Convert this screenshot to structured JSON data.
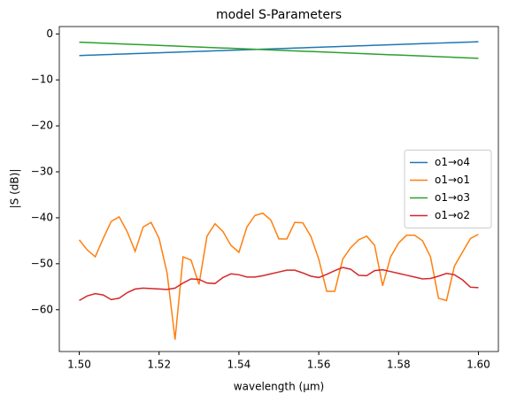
{
  "chart_data": {
    "type": "line",
    "title": "model S-Parameters",
    "x_label": "wavelength (µm)",
    "y_label": "|S (dB)|",
    "x": [
      1.5,
      1.502,
      1.504,
      1.506,
      1.508,
      1.51,
      1.512,
      1.514,
      1.516,
      1.518,
      1.52,
      1.522,
      1.524,
      1.526,
      1.528,
      1.53,
      1.532,
      1.534,
      1.536,
      1.538,
      1.54,
      1.542,
      1.544,
      1.546,
      1.548,
      1.55,
      1.552,
      1.554,
      1.556,
      1.558,
      1.56,
      1.562,
      1.564,
      1.566,
      1.568,
      1.57,
      1.572,
      1.574,
      1.576,
      1.578,
      1.58,
      1.582,
      1.584,
      1.586,
      1.588,
      1.59,
      1.592,
      1.594,
      1.596,
      1.598,
      1.6
    ],
    "series": [
      {
        "name": "o1→o4",
        "color": "#1f77b4",
        "values": [
          -4.7,
          -4.64,
          -4.58,
          -4.52,
          -4.46,
          -4.4,
          -4.34,
          -4.28,
          -4.22,
          -4.16,
          -4.1,
          -4.04,
          -3.98,
          -3.92,
          -3.86,
          -3.8,
          -3.74,
          -3.68,
          -3.62,
          -3.56,
          -3.5,
          -3.44,
          -3.38,
          -3.32,
          -3.26,
          -3.2,
          -3.14,
          -3.08,
          -3.02,
          -2.96,
          -2.9,
          -2.84,
          -2.78,
          -2.72,
          -2.66,
          -2.6,
          -2.54,
          -2.48,
          -2.42,
          -2.36,
          -2.3,
          -2.24,
          -2.18,
          -2.12,
          -2.06,
          -2.0,
          -1.94,
          -1.88,
          -1.82,
          -1.76,
          -1.7
        ]
      },
      {
        "name": "o1→o1",
        "color": "#ff7f0e",
        "values": [
          -44.8,
          -47.0,
          -48.5,
          -44.5,
          -40.8,
          -39.8,
          -43.0,
          -47.3,
          -42.0,
          -41.0,
          -44.5,
          -52.0,
          -66.5,
          -48.5,
          -49.2,
          -54.5,
          -44.0,
          -41.3,
          -43.0,
          -46.0,
          -47.5,
          -42.0,
          -39.5,
          -39.0,
          -40.5,
          -44.6,
          -44.6,
          -41.0,
          -41.1,
          -44.0,
          -49.0,
          -56.0,
          -56.0,
          -49.0,
          -46.5,
          -44.8,
          -44.0,
          -46.0,
          -54.8,
          -48.5,
          -45.5,
          -43.8,
          -43.8,
          -45.0,
          -48.5,
          -57.5,
          -58.0,
          -50.5,
          -47.5,
          -44.5,
          -43.6
        ]
      },
      {
        "name": "o1→o3",
        "color": "#2ca02c",
        "values": [
          -1.8,
          -1.87,
          -1.94,
          -2.01,
          -2.08,
          -2.15,
          -2.22,
          -2.29,
          -2.36,
          -2.43,
          -2.5,
          -2.57,
          -2.64,
          -2.71,
          -2.78,
          -2.85,
          -2.92,
          -2.99,
          -3.06,
          -3.13,
          -3.2,
          -3.27,
          -3.34,
          -3.41,
          -3.48,
          -3.55,
          -3.62,
          -3.69,
          -3.76,
          -3.83,
          -3.9,
          -3.97,
          -4.04,
          -4.11,
          -4.18,
          -4.25,
          -4.32,
          -4.39,
          -4.46,
          -4.53,
          -4.6,
          -4.67,
          -4.74,
          -4.81,
          -4.88,
          -4.95,
          -5.02,
          -5.09,
          -5.16,
          -5.23,
          -5.3
        ]
      },
      {
        "name": "o1→o2",
        "color": "#d62728",
        "values": [
          -58.0,
          -57.0,
          -56.5,
          -56.8,
          -57.8,
          -57.5,
          -56.3,
          -55.5,
          -55.3,
          -55.4,
          -55.5,
          -55.6,
          -55.3,
          -54.2,
          -53.3,
          -53.4,
          -54.2,
          -54.3,
          -53.0,
          -52.2,
          -52.4,
          -52.9,
          -52.9,
          -52.6,
          -52.2,
          -51.8,
          -51.4,
          -51.4,
          -52.0,
          -52.7,
          -53.0,
          -52.3,
          -51.5,
          -50.8,
          -51.2,
          -52.5,
          -52.6,
          -51.5,
          -51.3,
          -51.7,
          -52.1,
          -52.5,
          -52.9,
          -53.3,
          -53.2,
          -52.7,
          -52.1,
          -52.4,
          -53.5,
          -55.1,
          -55.2
        ]
      }
    ],
    "xlim": [
      1.495,
      1.605
    ],
    "ylim": [
      -69.1,
      1.6
    ],
    "xticks": [
      {
        "value": 1.5,
        "label": "1.50"
      },
      1.52,
      1.54,
      1.56,
      1.58,
      {
        "value": 1.6,
        "label": "1.60"
      }
    ],
    "yticks": [
      {
        "value": 0,
        "label": "0"
      },
      {
        "value": -10,
        "label": "−10"
      },
      {
        "value": -20,
        "label": "−20"
      },
      {
        "value": -30,
        "label": "−30"
      },
      {
        "value": -40,
        "label": "−40"
      },
      {
        "value": -50,
        "label": "−50"
      },
      {
        "value": -60,
        "label": "−60"
      }
    ],
    "legend": "center right",
    "grid": false
  }
}
